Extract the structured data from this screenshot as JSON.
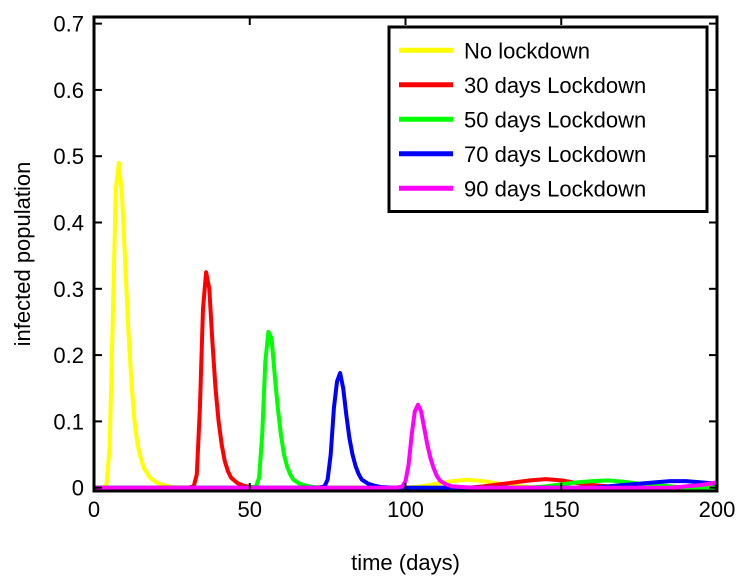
{
  "chart_data": {
    "type": "line",
    "xlabel": "time (days)",
    "ylabel": "infected population",
    "xlim": [
      0,
      200
    ],
    "ylim": [
      -0.005,
      0.71
    ],
    "x_ticks": [
      0,
      50,
      100,
      150,
      200
    ],
    "y_ticks": [
      0,
      0.1,
      0.2,
      0.3,
      0.4,
      0.5,
      0.6,
      0.7
    ],
    "x_tick_labels": [
      "0",
      "50",
      "100",
      "150",
      "200"
    ],
    "y_tick_labels": [
      "0",
      "0.1",
      "0.2",
      "0.3",
      "0.4",
      "0.5",
      "0.6",
      "0.7"
    ],
    "grid": false,
    "legend_position": "top-right",
    "series": [
      {
        "name": "No lockdown",
        "color": "#ffff00",
        "x": [
          0,
          3,
          4,
          5,
          6,
          7,
          8,
          9,
          10,
          11,
          12,
          13,
          14,
          15,
          16,
          18,
          20,
          22,
          25,
          30,
          40,
          60,
          80,
          100,
          105,
          110,
          115,
          120,
          125,
          130,
          135,
          140,
          150,
          200
        ],
        "y": [
          0,
          0,
          0.005,
          0.06,
          0.25,
          0.45,
          0.49,
          0.44,
          0.34,
          0.24,
          0.16,
          0.1,
          0.065,
          0.045,
          0.03,
          0.015,
          0.008,
          0.004,
          0.001,
          0,
          0,
          0,
          0,
          0,
          0.002,
          0.006,
          0.01,
          0.012,
          0.01,
          0.006,
          0.003,
          0.001,
          0,
          0
        ]
      },
      {
        "name": "30 days Lockdown",
        "color": "#ff0000",
        "x": [
          0,
          30,
          32,
          33,
          34,
          35,
          36,
          37,
          38,
          39,
          40,
          41,
          42,
          43,
          44,
          46,
          48,
          50,
          55,
          60,
          120,
          125,
          130,
          135,
          140,
          145,
          150,
          155,
          160,
          165,
          170,
          200
        ],
        "y": [
          0,
          0,
          0.002,
          0.02,
          0.12,
          0.27,
          0.325,
          0.3,
          0.22,
          0.15,
          0.1,
          0.065,
          0.04,
          0.025,
          0.015,
          0.007,
          0.003,
          0.001,
          0,
          0,
          0,
          0.002,
          0.005,
          0.008,
          0.011,
          0.013,
          0.011,
          0.007,
          0.004,
          0.002,
          0,
          0
        ]
      },
      {
        "name": "50 days Lockdown",
        "color": "#00ff00",
        "x": [
          0,
          50,
          52,
          53,
          54,
          55,
          56,
          57,
          58,
          59,
          60,
          61,
          62,
          63,
          64,
          66,
          68,
          70,
          75,
          80,
          140,
          145,
          150,
          155,
          160,
          165,
          170,
          175,
          180,
          185,
          190,
          200
        ],
        "y": [
          0,
          0,
          0.002,
          0.015,
          0.08,
          0.19,
          0.235,
          0.225,
          0.17,
          0.12,
          0.08,
          0.05,
          0.032,
          0.02,
          0.012,
          0.006,
          0.003,
          0.001,
          0,
          0,
          0,
          0.002,
          0.005,
          0.008,
          0.01,
          0.011,
          0.009,
          0.006,
          0.004,
          0.002,
          0,
          0
        ]
      },
      {
        "name": "70 days Lockdown",
        "color": "#0000ff",
        "x": [
          0,
          72,
          74,
          75,
          76,
          77,
          78,
          79,
          80,
          81,
          82,
          83,
          84,
          85,
          86,
          88,
          90,
          92,
          96,
          100,
          160,
          165,
          170,
          175,
          180,
          185,
          190,
          195,
          200
        ],
        "y": [
          0,
          0,
          0.002,
          0.012,
          0.05,
          0.12,
          0.16,
          0.173,
          0.15,
          0.11,
          0.075,
          0.05,
          0.032,
          0.02,
          0.012,
          0.006,
          0.003,
          0.001,
          0,
          0,
          0,
          0.002,
          0.004,
          0.006,
          0.008,
          0.01,
          0.01,
          0.008,
          0.006
        ]
      },
      {
        "name": "90 days Lockdown",
        "color": "#ff00ff",
        "x": [
          0,
          97,
          99,
          100,
          101,
          102,
          103,
          104,
          105,
          106,
          107,
          108,
          109,
          110,
          111,
          113,
          115,
          118,
          122,
          130,
          150,
          170,
          185,
          195,
          200
        ],
        "y": [
          0,
          0,
          0.002,
          0.01,
          0.035,
          0.08,
          0.115,
          0.125,
          0.115,
          0.09,
          0.065,
          0.045,
          0.03,
          0.018,
          0.011,
          0.005,
          0.002,
          0.001,
          0,
          0,
          0,
          0,
          0,
          0.004,
          0.008
        ]
      }
    ]
  }
}
